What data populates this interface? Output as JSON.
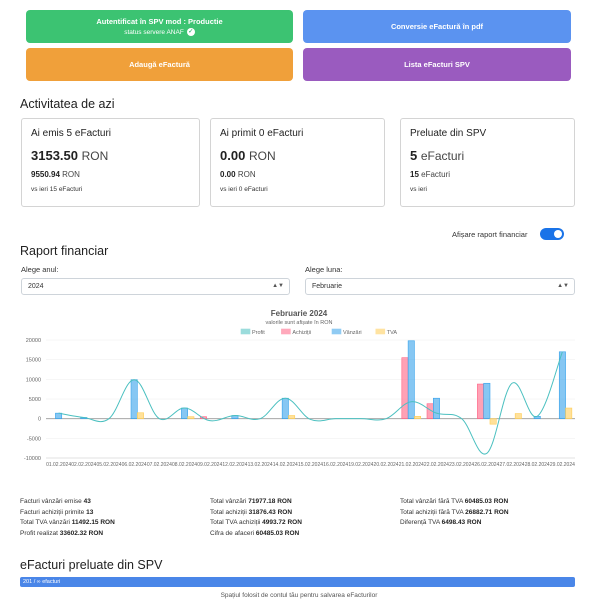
{
  "buttons": {
    "auth_title": "Autentificat în SPV mod : Productie",
    "auth_status": "status servere ANAF",
    "convert": "Conversie eFactură în pdf",
    "add": "Adaugă eFactură",
    "list": "Lista eFacturi SPV"
  },
  "colors": {
    "green": "#3cc372",
    "blue": "#5b93f0",
    "orange": "#f0a03a",
    "purple": "#9a5bbf"
  },
  "today": {
    "title": "Activitatea de azi",
    "cards": [
      {
        "title": "Ai emis 5 eFacturi",
        "big_value": "3153.50",
        "big_unit": "RON",
        "mid_value": "9550.94",
        "mid_unit": "RON",
        "note": "vs ieri 15 eFacturi"
      },
      {
        "title": "Ai primit 0 eFacturi",
        "big_value": "0.00",
        "big_unit": "RON",
        "mid_value": "0.00",
        "mid_unit": "RON",
        "note": "vs ieri 0 eFacturi"
      },
      {
        "title": "Preluate din SPV",
        "big_value": "5",
        "big_unit": "eFacturi",
        "mid_value": "15",
        "mid_unit": "eFacturi",
        "note": "vs ieri"
      }
    ]
  },
  "report": {
    "toggle_label": "Afișare raport financiar",
    "title": "Raport financiar",
    "year_label": "Alege anul:",
    "year_value": "2024",
    "month_label": "Alege luna:",
    "month_value": "Februarie"
  },
  "chart_data": {
    "type": "bar",
    "title": "Februarie 2024",
    "subtitle": "valorile sunt afișate în RON",
    "legend_position": "top-center",
    "series_names": [
      "Profit",
      "Achiziții",
      "Vânzări",
      "TVA"
    ],
    "series_colors": [
      "#4bc0c0",
      "#ff6384",
      "#36a2eb",
      "#ffcd56"
    ],
    "ylim": [
      -10000,
      20000
    ],
    "yticks": [
      "20000",
      "15000",
      "10000",
      "5000",
      "0",
      "-5000",
      "-10000"
    ],
    "categories": [
      "01.02.2024",
      "02.02.2024",
      "05.02.2024",
      "06.02.2024",
      "07.02.2024",
      "08.02.2024",
      "09.02.2024",
      "12.02.2024",
      "13.02.2024",
      "14.02.2024",
      "15.02.2024",
      "16.02.2024",
      "19.02.2024",
      "20.02.2024",
      "21.02.2024",
      "22.02.2024",
      "23.02.2024",
      "26.02.2024",
      "27.02.2024",
      "28.02.2024",
      "29.02.2024"
    ],
    "series": [
      {
        "name": "Achiziții",
        "type": "bar",
        "values": [
          0,
          0,
          0,
          0,
          0,
          0,
          500,
          0,
          0,
          0,
          0,
          0,
          0,
          0,
          15500,
          3800,
          0,
          8800,
          0,
          0,
          0
        ]
      },
      {
        "name": "Vânzări",
        "type": "bar",
        "values": [
          1400,
          300,
          0,
          9900,
          0,
          2700,
          0,
          800,
          0,
          5200,
          0,
          0,
          0,
          0,
          19800,
          5200,
          0,
          9000,
          0,
          600,
          17000
        ]
      },
      {
        "name": "TVA",
        "type": "bar",
        "values": [
          0,
          0,
          0,
          1500,
          0,
          500,
          0,
          0,
          0,
          800,
          0,
          0,
          0,
          0,
          600,
          0,
          0,
          -1400,
          1300,
          0,
          2700
        ]
      },
      {
        "name": "Profit",
        "type": "line",
        "values": [
          1400,
          300,
          0,
          9900,
          0,
          2700,
          -500,
          800,
          0,
          5200,
          -200,
          0,
          0,
          0,
          4300,
          1400,
          0,
          -8800,
          9000,
          600,
          17000
        ]
      }
    ]
  },
  "stats": {
    "col1": [
      {
        "label": "Facturi vânzări emise",
        "value": "43"
      },
      {
        "label": "Facturi achiziții primite",
        "value": "13"
      },
      {
        "label": "Total TVA vânzări",
        "value": "11492.15 RON"
      },
      {
        "label": "Profit realizat",
        "value": "33602.32 RON"
      }
    ],
    "col2": [
      {
        "label": "Total vânzări",
        "value": "71977.18 RON"
      },
      {
        "label": "Total achiziții",
        "value": "31876.43 RON"
      },
      {
        "label": "Total TVA achiziții",
        "value": "4993.72 RON"
      },
      {
        "label": "Cifra de afaceri",
        "value": "60485.03 RON"
      }
    ],
    "col3": [
      {
        "label": "Total vânzări fără TVA",
        "value": "60485.03 RON"
      },
      {
        "label": "Total achiziții fără TVA",
        "value": "26882.71 RON"
      },
      {
        "label": "Diferență TVA",
        "value": "6498.43 RON"
      }
    ]
  },
  "spv": {
    "title": "eFacturi preluate din SPV",
    "progress_text": "201 / ∞ efacturi",
    "progress_fraction": 1.0,
    "footer": "Spațiul folosit de contul tău pentru salvarea eFacturilor"
  }
}
